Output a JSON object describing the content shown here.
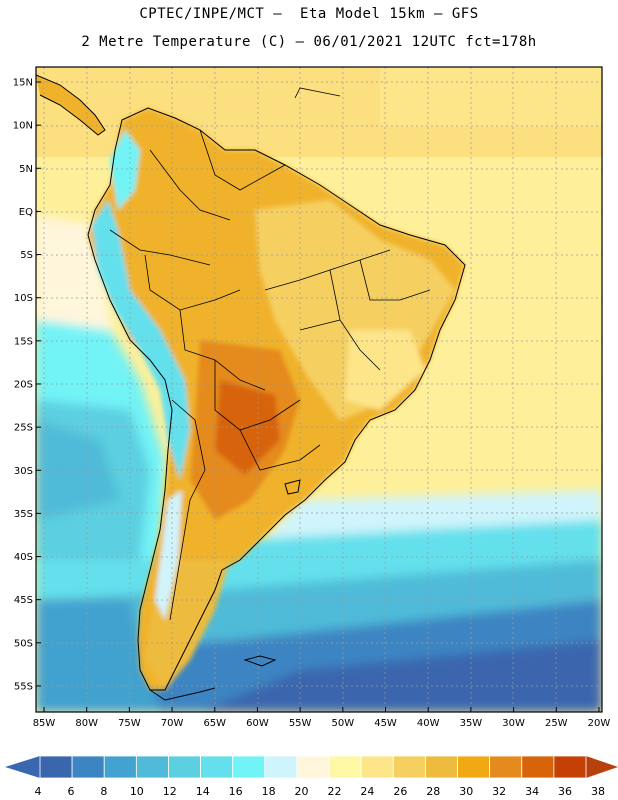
{
  "header": {
    "line1": "CPTEC/INPE/MCT –  Eta Model 15km – GFS",
    "line2": "2 Metre Temperature (C) – 06/01/2021 12UTC fct=178h"
  },
  "map": {
    "lat_labels": [
      "15N",
      "10N",
      "5N",
      "EQ",
      "5S",
      "10S",
      "15S",
      "20S",
      "25S",
      "30S",
      "35S",
      "40S",
      "45S",
      "50S",
      "55S"
    ],
    "lon_labels": [
      "85W",
      "80W",
      "75W",
      "70W",
      "65W",
      "60W",
      "55W",
      "50W",
      "45W",
      "40W",
      "35W",
      "30W",
      "25W",
      "20W"
    ]
  },
  "colorbar": {
    "labels": [
      "4",
      "6",
      "8",
      "10",
      "12",
      "14",
      "16",
      "18",
      "20",
      "22",
      "24",
      "26",
      "28",
      "30",
      "32",
      "34",
      "36",
      "38"
    ],
    "low_color": "#3a68b0",
    "high_color": "#b8400c",
    "colors": [
      "#3a66ae",
      "#3d85c2",
      "#43a2cf",
      "#4fbbd8",
      "#5ccfe0",
      "#63e0ec",
      "#72f3f6",
      "#d0f4fb",
      "#fff6dc",
      "#fef7a4",
      "#fde58a",
      "#f5d061",
      "#edbb3e",
      "#f0a914",
      "#e58a1d",
      "#d8640a",
      "#c54004"
    ]
  }
}
